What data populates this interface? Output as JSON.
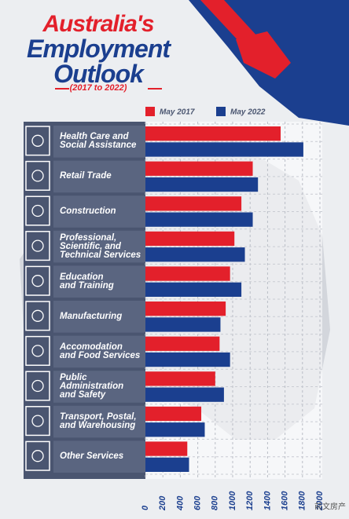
{
  "chart_data": {
    "type": "bar",
    "title": [
      "Australia's",
      "Employment",
      "Outlook"
    ],
    "subtitle": "(2017 to 2022)",
    "orientation": "horizontal",
    "categories": [
      "Health Care and\nSocial Assistance",
      "Retail Trade",
      "Construction",
      "Professional,\nScientific, and\nTechnical Services",
      "Education\nand Training",
      "Manufacturing",
      "Accomodation\nand Food Services",
      "Public\nAdministration\nand Safety",
      "Transport, Postal,\nand Warehousing",
      "Other Services"
    ],
    "series": [
      {
        "name": "May 2017",
        "color": "#e3202b",
        "values": [
          1550,
          1230,
          1100,
          1020,
          970,
          920,
          850,
          800,
          640,
          480
        ]
      },
      {
        "name": "May 2022",
        "color": "#1b3f8f",
        "values": [
          1810,
          1290,
          1230,
          1140,
          1100,
          860,
          970,
          900,
          680,
          500
        ]
      }
    ],
    "xlim": [
      0,
      2000
    ],
    "xticks": [
      0,
      200,
      400,
      600,
      800,
      1000,
      1200,
      1400,
      1600,
      1800,
      2000
    ],
    "grid": true,
    "watermark": "前文房产"
  }
}
